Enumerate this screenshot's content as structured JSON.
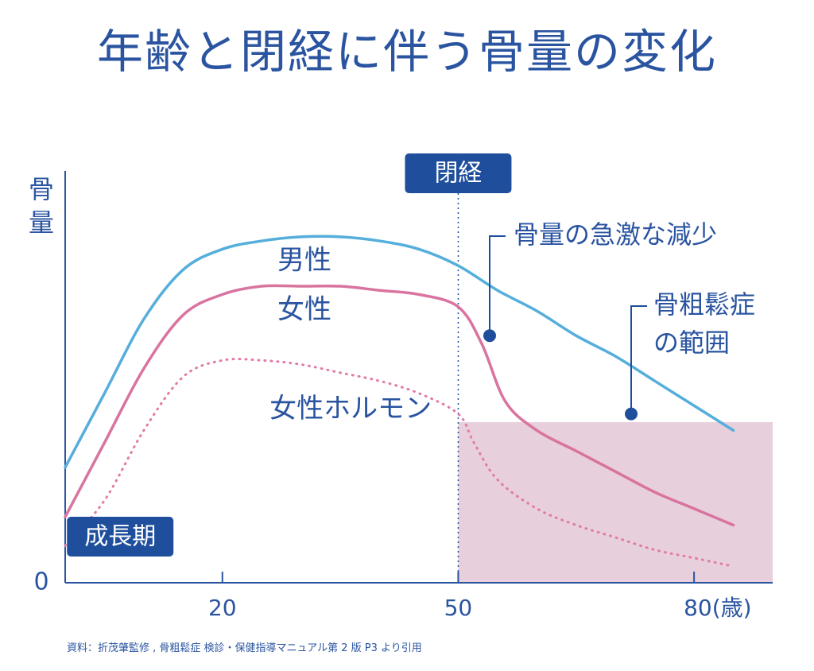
{
  "title": "年齢と閉経に伴う骨量の変化",
  "source": "資料：折茂肇監修 , 骨粗鬆症 検診・保健指導マニュアル第 2 版 P3 より引用",
  "colors": {
    "text": "#2a54a0",
    "male": "#55aedb",
    "female": "#d9739f",
    "hormone": "#e27aa7",
    "osteoporosis_region": "#e8cfdc",
    "badge": "#1f4f9c",
    "axis": "#2a54a0"
  },
  "chart_data": {
    "type": "line",
    "ylabel": "骨量",
    "xlim": [
      0,
      90
    ],
    "ylim": [
      0,
      100
    ],
    "x_ticks": [
      {
        "value": 20,
        "label": "20"
      },
      {
        "value": 50,
        "label": "50"
      },
      {
        "value": 80,
        "label": "80(歳)"
      }
    ],
    "y_ticks": [
      {
        "value": 0,
        "label": "0"
      }
    ],
    "grid": false,
    "series": [
      {
        "name": "男性",
        "style": "solid",
        "color": "#55aedb",
        "x": [
          0,
          5,
          10,
          15,
          20,
          25,
          30,
          35,
          40,
          45,
          50,
          55,
          60,
          65,
          70,
          75,
          80,
          85
        ],
        "y": [
          28,
          46,
          64,
          76,
          81,
          83,
          84,
          84,
          83,
          81,
          77,
          71,
          66,
          60,
          55,
          49,
          43,
          37
        ]
      },
      {
        "name": "女性",
        "style": "solid",
        "color": "#d9739f",
        "x": [
          0,
          5,
          10,
          15,
          20,
          25,
          30,
          35,
          40,
          45,
          50,
          53,
          56,
          60,
          65,
          70,
          75,
          80,
          85
        ],
        "y": [
          16,
          34,
          52,
          65,
          70,
          72,
          72,
          72,
          71,
          70,
          67,
          58,
          44,
          37,
          32,
          27,
          22,
          18,
          14
        ]
      },
      {
        "name": "女性ホルモン",
        "style": "dotted",
        "color": "#e27aa7",
        "x": [
          0,
          5,
          10,
          15,
          20,
          25,
          30,
          35,
          40,
          45,
          50,
          52,
          55,
          60,
          65,
          70,
          75,
          80,
          85
        ],
        "y": [
          9,
          20,
          37,
          50,
          54,
          54,
          53,
          51,
          49,
          46,
          41,
          34,
          25,
          18,
          14,
          11,
          8,
          6,
          4
        ]
      }
    ],
    "regions": [
      {
        "label": "骨粗鬆症の範囲",
        "x": [
          50,
          90
        ],
        "y": [
          0,
          39
        ]
      }
    ],
    "vlines": [
      {
        "x": 50,
        "label": "閉経",
        "style": "dotted"
      }
    ],
    "annotations": [
      {
        "text": "骨量の急激な減少",
        "point": [
          54,
          60
        ]
      },
      {
        "text": "骨粗鬆症",
        "text2": "の範囲",
        "point": [
          72,
          41
        ]
      },
      {
        "text": "男性",
        "at": [
          27,
          78
        ]
      },
      {
        "text": "女性",
        "at": [
          27,
          66
        ]
      },
      {
        "text": "女性ホルモン",
        "at": [
          26,
          42
        ]
      },
      {
        "text": "成長期",
        "at": [
          7,
          11
        ],
        "badge": true
      }
    ]
  }
}
